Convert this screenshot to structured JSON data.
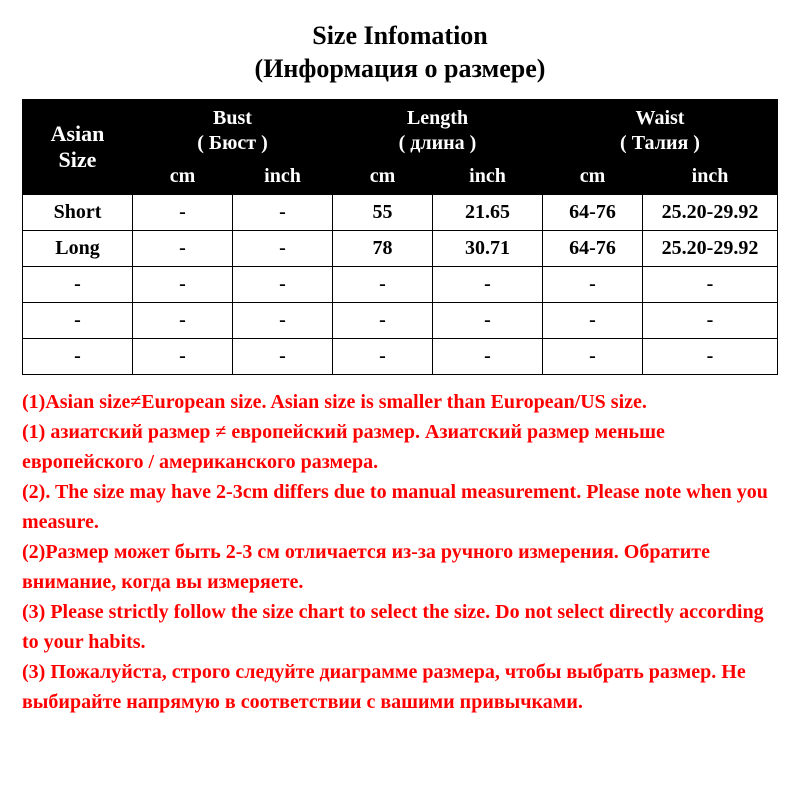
{
  "title": {
    "line1": "Size Infomation",
    "line2": "(Информация о размере)",
    "fontsize": 26
  },
  "table": {
    "type": "table",
    "header_bg": "#000000",
    "header_fg": "#ffffff",
    "border_color": "#000000",
    "body_fontsize": 20,
    "header_fontsize": 20,
    "asian_header_line1": "Asian",
    "asian_header_line2": "Size",
    "groups": [
      {
        "label_en": "Bust",
        "label_ru": "( Бюст )"
      },
      {
        "label_en": "Length",
        "label_ru": "( длина )"
      },
      {
        "label_en": "Waist",
        "label_ru": "( Талия )"
      }
    ],
    "unit_cm": "cm",
    "unit_inch": "inch",
    "rows": [
      {
        "size": "Short",
        "bust_cm": "-",
        "bust_in": "-",
        "len_cm": "55",
        "len_in": "21.65",
        "waist_cm": "64-76",
        "waist_in": "25.20-29.92"
      },
      {
        "size": "Long",
        "bust_cm": "-",
        "bust_in": "-",
        "len_cm": "78",
        "len_in": "30.71",
        "waist_cm": "64-76",
        "waist_in": "25.20-29.92"
      },
      {
        "size": "-",
        "bust_cm": "-",
        "bust_in": "-",
        "len_cm": "-",
        "len_in": "-",
        "waist_cm": "-",
        "waist_in": "-"
      },
      {
        "size": "-",
        "bust_cm": "-",
        "bust_in": "-",
        "len_cm": "-",
        "len_in": "-",
        "waist_cm": "-",
        "waist_in": "-"
      },
      {
        "size": "-",
        "bust_cm": "-",
        "bust_in": "-",
        "len_cm": "-",
        "len_in": "-",
        "waist_cm": "-",
        "waist_in": "-"
      }
    ]
  },
  "notes": {
    "color": "#ff0000",
    "fontsize": 20,
    "lines": [
      "(1)Asian size≠European size.  Asian size is smaller than European/US size.",
      "(1) азиатский размер ≠ европейский размер. Азиатский размер меньше европейского / американского размера.",
      "(2). The size may have 2-3cm differs due to manual measurement. Please note when you measure.",
      "(2)Размер может быть 2-3 см отличается из-за ручного измерения. Обратите внимание, когда вы измеряете.",
      "(3) Please strictly follow the size chart  to select the size. Do not select directly according to your habits.",
      " (3) Пожалуйста, строго следуйте диаграмме размера, чтобы выбрать размер. Не выбирайте напрямую в соответствии с вашими привычками."
    ]
  }
}
